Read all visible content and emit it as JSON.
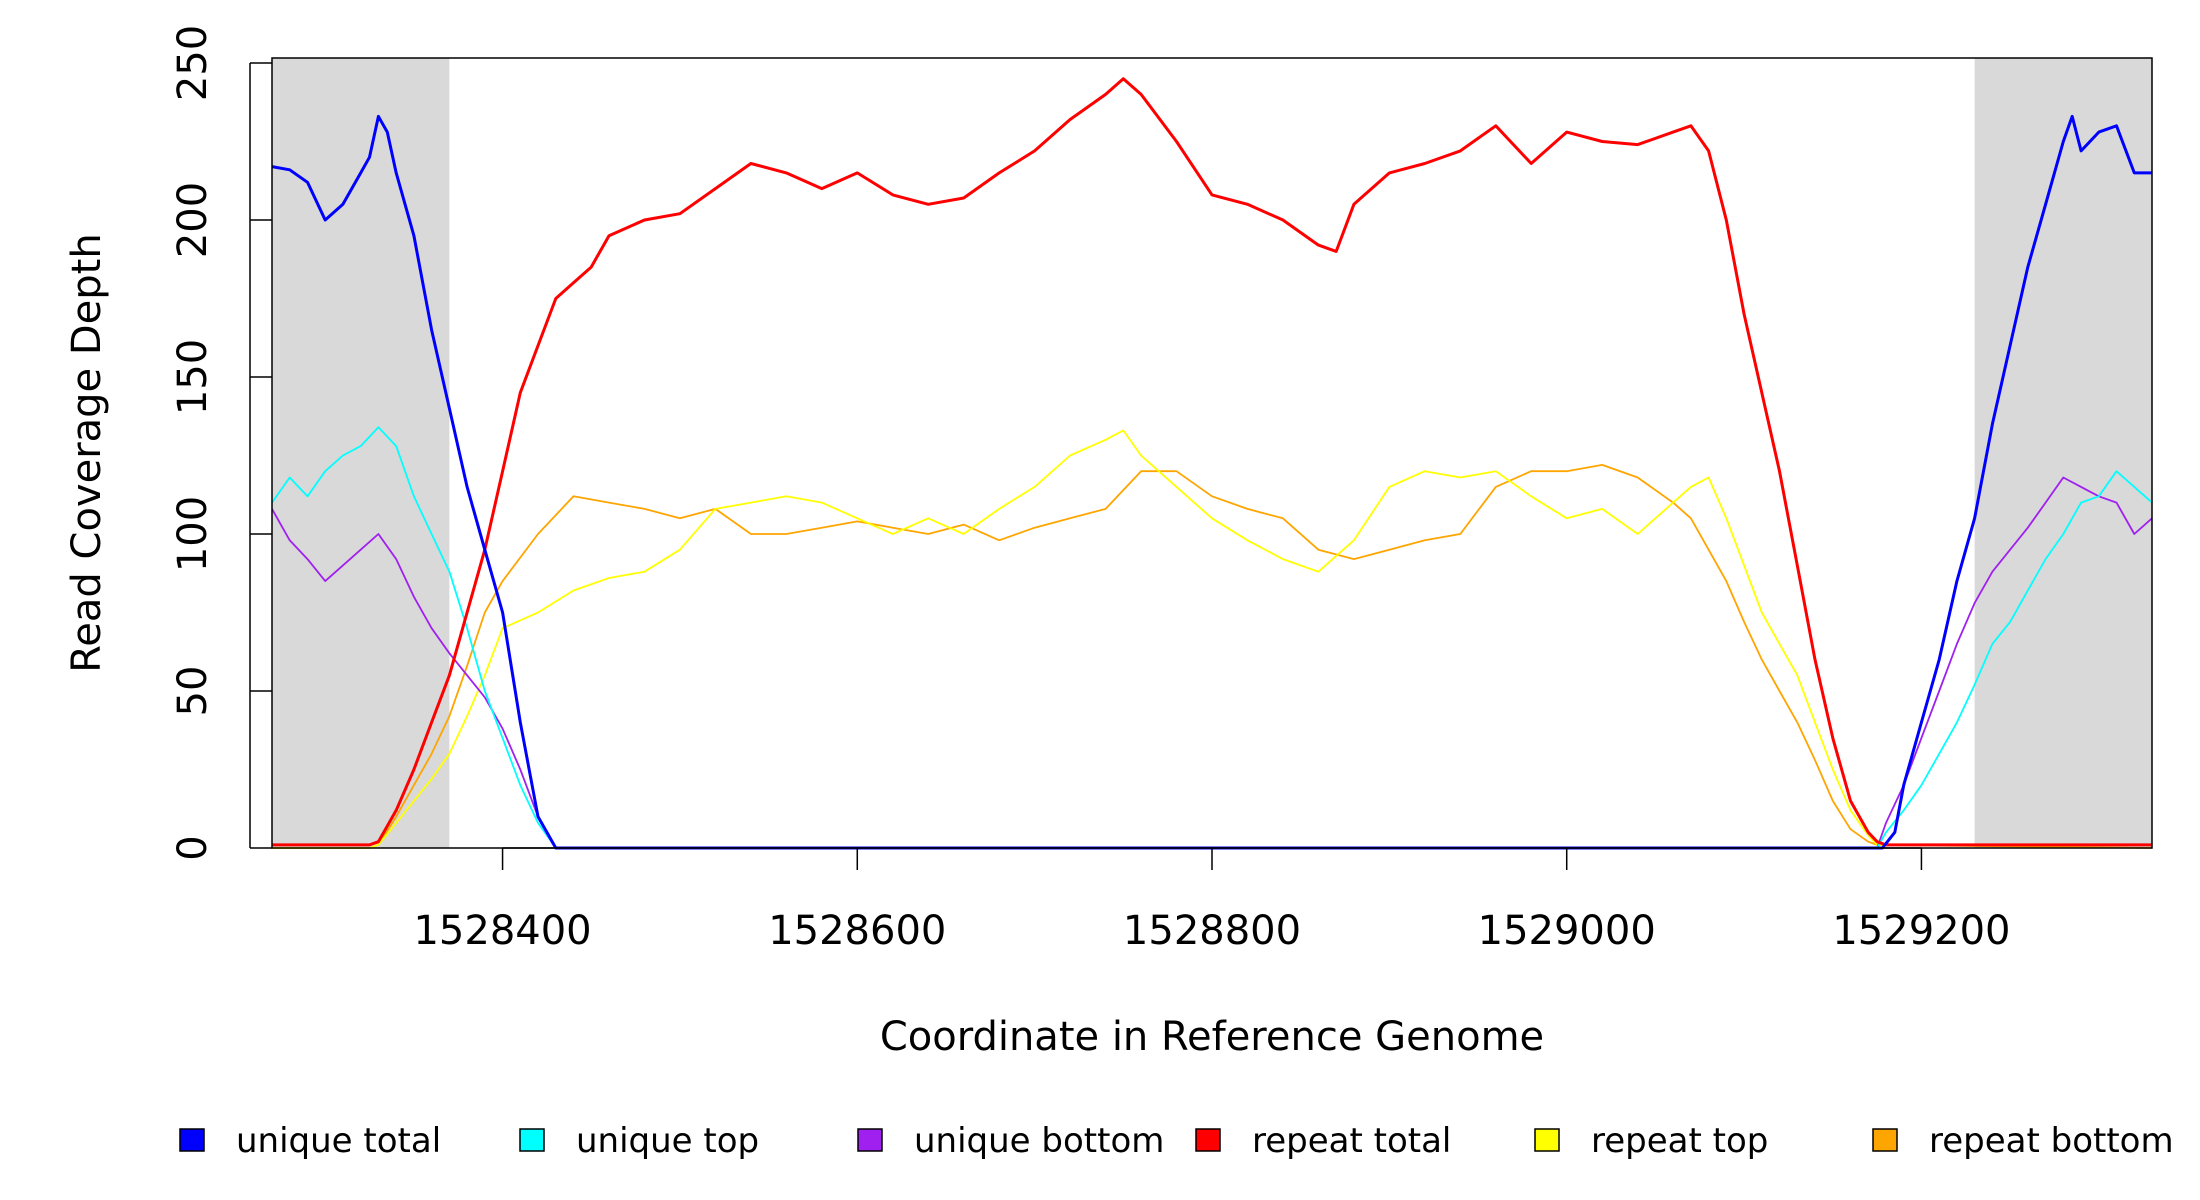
{
  "chart_data": {
    "type": "line",
    "title": "",
    "xlabel": "Coordinate in Reference Genome",
    "ylabel": "Read Coverage Depth",
    "xlim": [
      1528270,
      1529330
    ],
    "ylim": [
      0,
      250
    ],
    "xticks": [
      1528400,
      1528600,
      1528800,
      1529000,
      1529200
    ],
    "xtick_labels": [
      "1528400",
      "1528600",
      "1528800",
      "1529000",
      "1529200"
    ],
    "yticks": [
      0,
      50,
      100,
      150,
      200,
      250
    ],
    "ytick_labels": [
      "0",
      "50",
      "100",
      "150",
      "200",
      "250"
    ],
    "grid": false,
    "legend_position": "bottom",
    "shaded_regions": [
      {
        "x_start": 1528270,
        "x_end": 1528370,
        "color": "#d9d9d9"
      },
      {
        "x_start": 1529230,
        "x_end": 1529330,
        "color": "#d9d9d9"
      }
    ],
    "series": [
      {
        "name": "unique total",
        "color": "#0000ff",
        "x": [
          1528270,
          1528280,
          1528290,
          1528300,
          1528310,
          1528320,
          1528325,
          1528330,
          1528335,
          1528340,
          1528350,
          1528360,
          1528370,
          1528380,
          1528390,
          1528400,
          1528410,
          1528420,
          1528430,
          1528440,
          1528600,
          1528800,
          1529000,
          1529150,
          1529175,
          1529178,
          1529185,
          1529190,
          1529200,
          1529210,
          1529220,
          1529230,
          1529240,
          1529250,
          1529260,
          1529270,
          1529280,
          1529285,
          1529290,
          1529300,
          1529310,
          1529320,
          1529330
        ],
        "values": [
          217,
          216,
          212,
          200,
          205,
          215,
          220,
          233,
          228,
          215,
          195,
          165,
          140,
          115,
          95,
          75,
          40,
          10,
          0,
          0,
          0,
          0,
          0,
          0,
          0,
          0,
          5,
          20,
          40,
          60,
          85,
          105,
          135,
          160,
          185,
          205,
          225,
          233,
          222,
          228,
          230,
          215,
          215
        ]
      },
      {
        "name": "unique top",
        "color": "#00ffff",
        "x": [
          1528270,
          1528280,
          1528290,
          1528300,
          1528310,
          1528320,
          1528330,
          1528340,
          1528350,
          1528360,
          1528370,
          1528380,
          1528390,
          1528400,
          1528410,
          1528420,
          1528430,
          1528440,
          1528600,
          1528800,
          1529000,
          1529150,
          1529175,
          1529180,
          1529190,
          1529200,
          1529210,
          1529220,
          1529230,
          1529240,
          1529250,
          1529260,
          1529270,
          1529280,
          1529290,
          1529300,
          1529310,
          1529320,
          1529330
        ],
        "values": [
          110,
          118,
          112,
          120,
          125,
          128,
          134,
          128,
          112,
          100,
          88,
          70,
          50,
          35,
          20,
          8,
          0,
          0,
          0,
          0,
          0,
          0,
          0,
          5,
          12,
          20,
          30,
          40,
          52,
          65,
          72,
          82,
          92,
          100,
          110,
          112,
          120,
          115,
          110
        ]
      },
      {
        "name": "unique bottom",
        "color": "#a020f0",
        "x": [
          1528270,
          1528280,
          1528290,
          1528300,
          1528310,
          1528320,
          1528330,
          1528340,
          1528350,
          1528360,
          1528370,
          1528380,
          1528390,
          1528400,
          1528410,
          1528420,
          1528430,
          1528440,
          1528600,
          1528800,
          1529000,
          1529150,
          1529175,
          1529180,
          1529190,
          1529200,
          1529210,
          1529220,
          1529230,
          1529240,
          1529250,
          1529260,
          1529270,
          1529280,
          1529290,
          1529300,
          1529310,
          1529320,
          1529330
        ],
        "values": [
          108,
          98,
          92,
          85,
          90,
          95,
          100,
          92,
          80,
          70,
          62,
          55,
          48,
          38,
          25,
          10,
          0,
          0,
          0,
          0,
          0,
          0,
          0,
          8,
          20,
          35,
          50,
          65,
          78,
          88,
          95,
          102,
          110,
          118,
          115,
          112,
          110,
          100,
          105
        ]
      },
      {
        "name": "repeat total",
        "color": "#ff0000",
        "x": [
          1528270,
          1528320,
          1528325,
          1528330,
          1528340,
          1528350,
          1528360,
          1528370,
          1528380,
          1528390,
          1528400,
          1528410,
          1528420,
          1528430,
          1528440,
          1528450,
          1528460,
          1528480,
          1528500,
          1528520,
          1528540,
          1528560,
          1528580,
          1528600,
          1528620,
          1528640,
          1528660,
          1528680,
          1528700,
          1528720,
          1528740,
          1528750,
          1528760,
          1528780,
          1528800,
          1528820,
          1528840,
          1528860,
          1528870,
          1528880,
          1528900,
          1528920,
          1528940,
          1528960,
          1528980,
          1529000,
          1529020,
          1529040,
          1529060,
          1529070,
          1529080,
          1529090,
          1529100,
          1529110,
          1529120,
          1529130,
          1529140,
          1529150,
          1529160,
          1529170,
          1529175,
          1529180,
          1529330
        ],
        "values": [
          1,
          1,
          1,
          2,
          12,
          25,
          40,
          55,
          75,
          95,
          120,
          145,
          160,
          175,
          180,
          185,
          195,
          200,
          202,
          210,
          218,
          215,
          210,
          215,
          208,
          205,
          207,
          215,
          222,
          232,
          240,
          245,
          240,
          225,
          208,
          205,
          200,
          192,
          190,
          205,
          215,
          218,
          222,
          230,
          218,
          228,
          225,
          224,
          228,
          230,
          222,
          200,
          170,
          145,
          120,
          90,
          60,
          35,
          15,
          5,
          2,
          1,
          1
        ]
      },
      {
        "name": "repeat top",
        "color": "#ffff00",
        "x": [
          1528270,
          1528320,
          1528325,
          1528330,
          1528340,
          1528350,
          1528360,
          1528370,
          1528380,
          1528390,
          1528400,
          1528420,
          1528440,
          1528460,
          1528480,
          1528500,
          1528520,
          1528540,
          1528560,
          1528580,
          1528600,
          1528620,
          1528640,
          1528660,
          1528680,
          1528700,
          1528720,
          1528740,
          1528750,
          1528760,
          1528780,
          1528800,
          1528820,
          1528840,
          1528860,
          1528880,
          1528900,
          1528920,
          1528940,
          1528960,
          1528980,
          1529000,
          1529020,
          1529040,
          1529060,
          1529070,
          1529080,
          1529090,
          1529100,
          1529110,
          1529120,
          1529130,
          1529140,
          1529150,
          1529160,
          1529170,
          1529175,
          1529330
        ],
        "values": [
          0,
          0,
          0,
          1,
          8,
          15,
          22,
          30,
          42,
          55,
          70,
          75,
          82,
          86,
          88,
          95,
          108,
          110,
          112,
          110,
          105,
          100,
          105,
          100,
          108,
          115,
          125,
          130,
          133,
          125,
          115,
          105,
          98,
          92,
          88,
          98,
          115,
          120,
          118,
          120,
          112,
          105,
          108,
          100,
          110,
          115,
          118,
          105,
          90,
          75,
          65,
          55,
          40,
          25,
          12,
          4,
          1,
          1
        ]
      },
      {
        "name": "repeat bottom",
        "color": "#ffa500",
        "x": [
          1528270,
          1528320,
          1528325,
          1528330,
          1528340,
          1528350,
          1528360,
          1528370,
          1528380,
          1528390,
          1528400,
          1528420,
          1528440,
          1528460,
          1528480,
          1528500,
          1528520,
          1528540,
          1528560,
          1528580,
          1528600,
          1528620,
          1528640,
          1528660,
          1528680,
          1528700,
          1528720,
          1528740,
          1528760,
          1528780,
          1528800,
          1528820,
          1528840,
          1528860,
          1528880,
          1528900,
          1528920,
          1528940,
          1528960,
          1528980,
          1529000,
          1529020,
          1529040,
          1529060,
          1529070,
          1529080,
          1529090,
          1529100,
          1529110,
          1529120,
          1529130,
          1529140,
          1529150,
          1529160,
          1529170,
          1529175,
          1529330
        ],
        "values": [
          0,
          0,
          0,
          1,
          10,
          20,
          30,
          42,
          58,
          75,
          85,
          100,
          112,
          110,
          108,
          105,
          108,
          100,
          100,
          102,
          104,
          102,
          100,
          103,
          98,
          102,
          105,
          108,
          120,
          120,
          112,
          108,
          105,
          95,
          92,
          95,
          98,
          100,
          115,
          120,
          120,
          122,
          118,
          110,
          105,
          95,
          85,
          72,
          60,
          50,
          40,
          28,
          15,
          6,
          2,
          1,
          0
        ]
      }
    ]
  }
}
